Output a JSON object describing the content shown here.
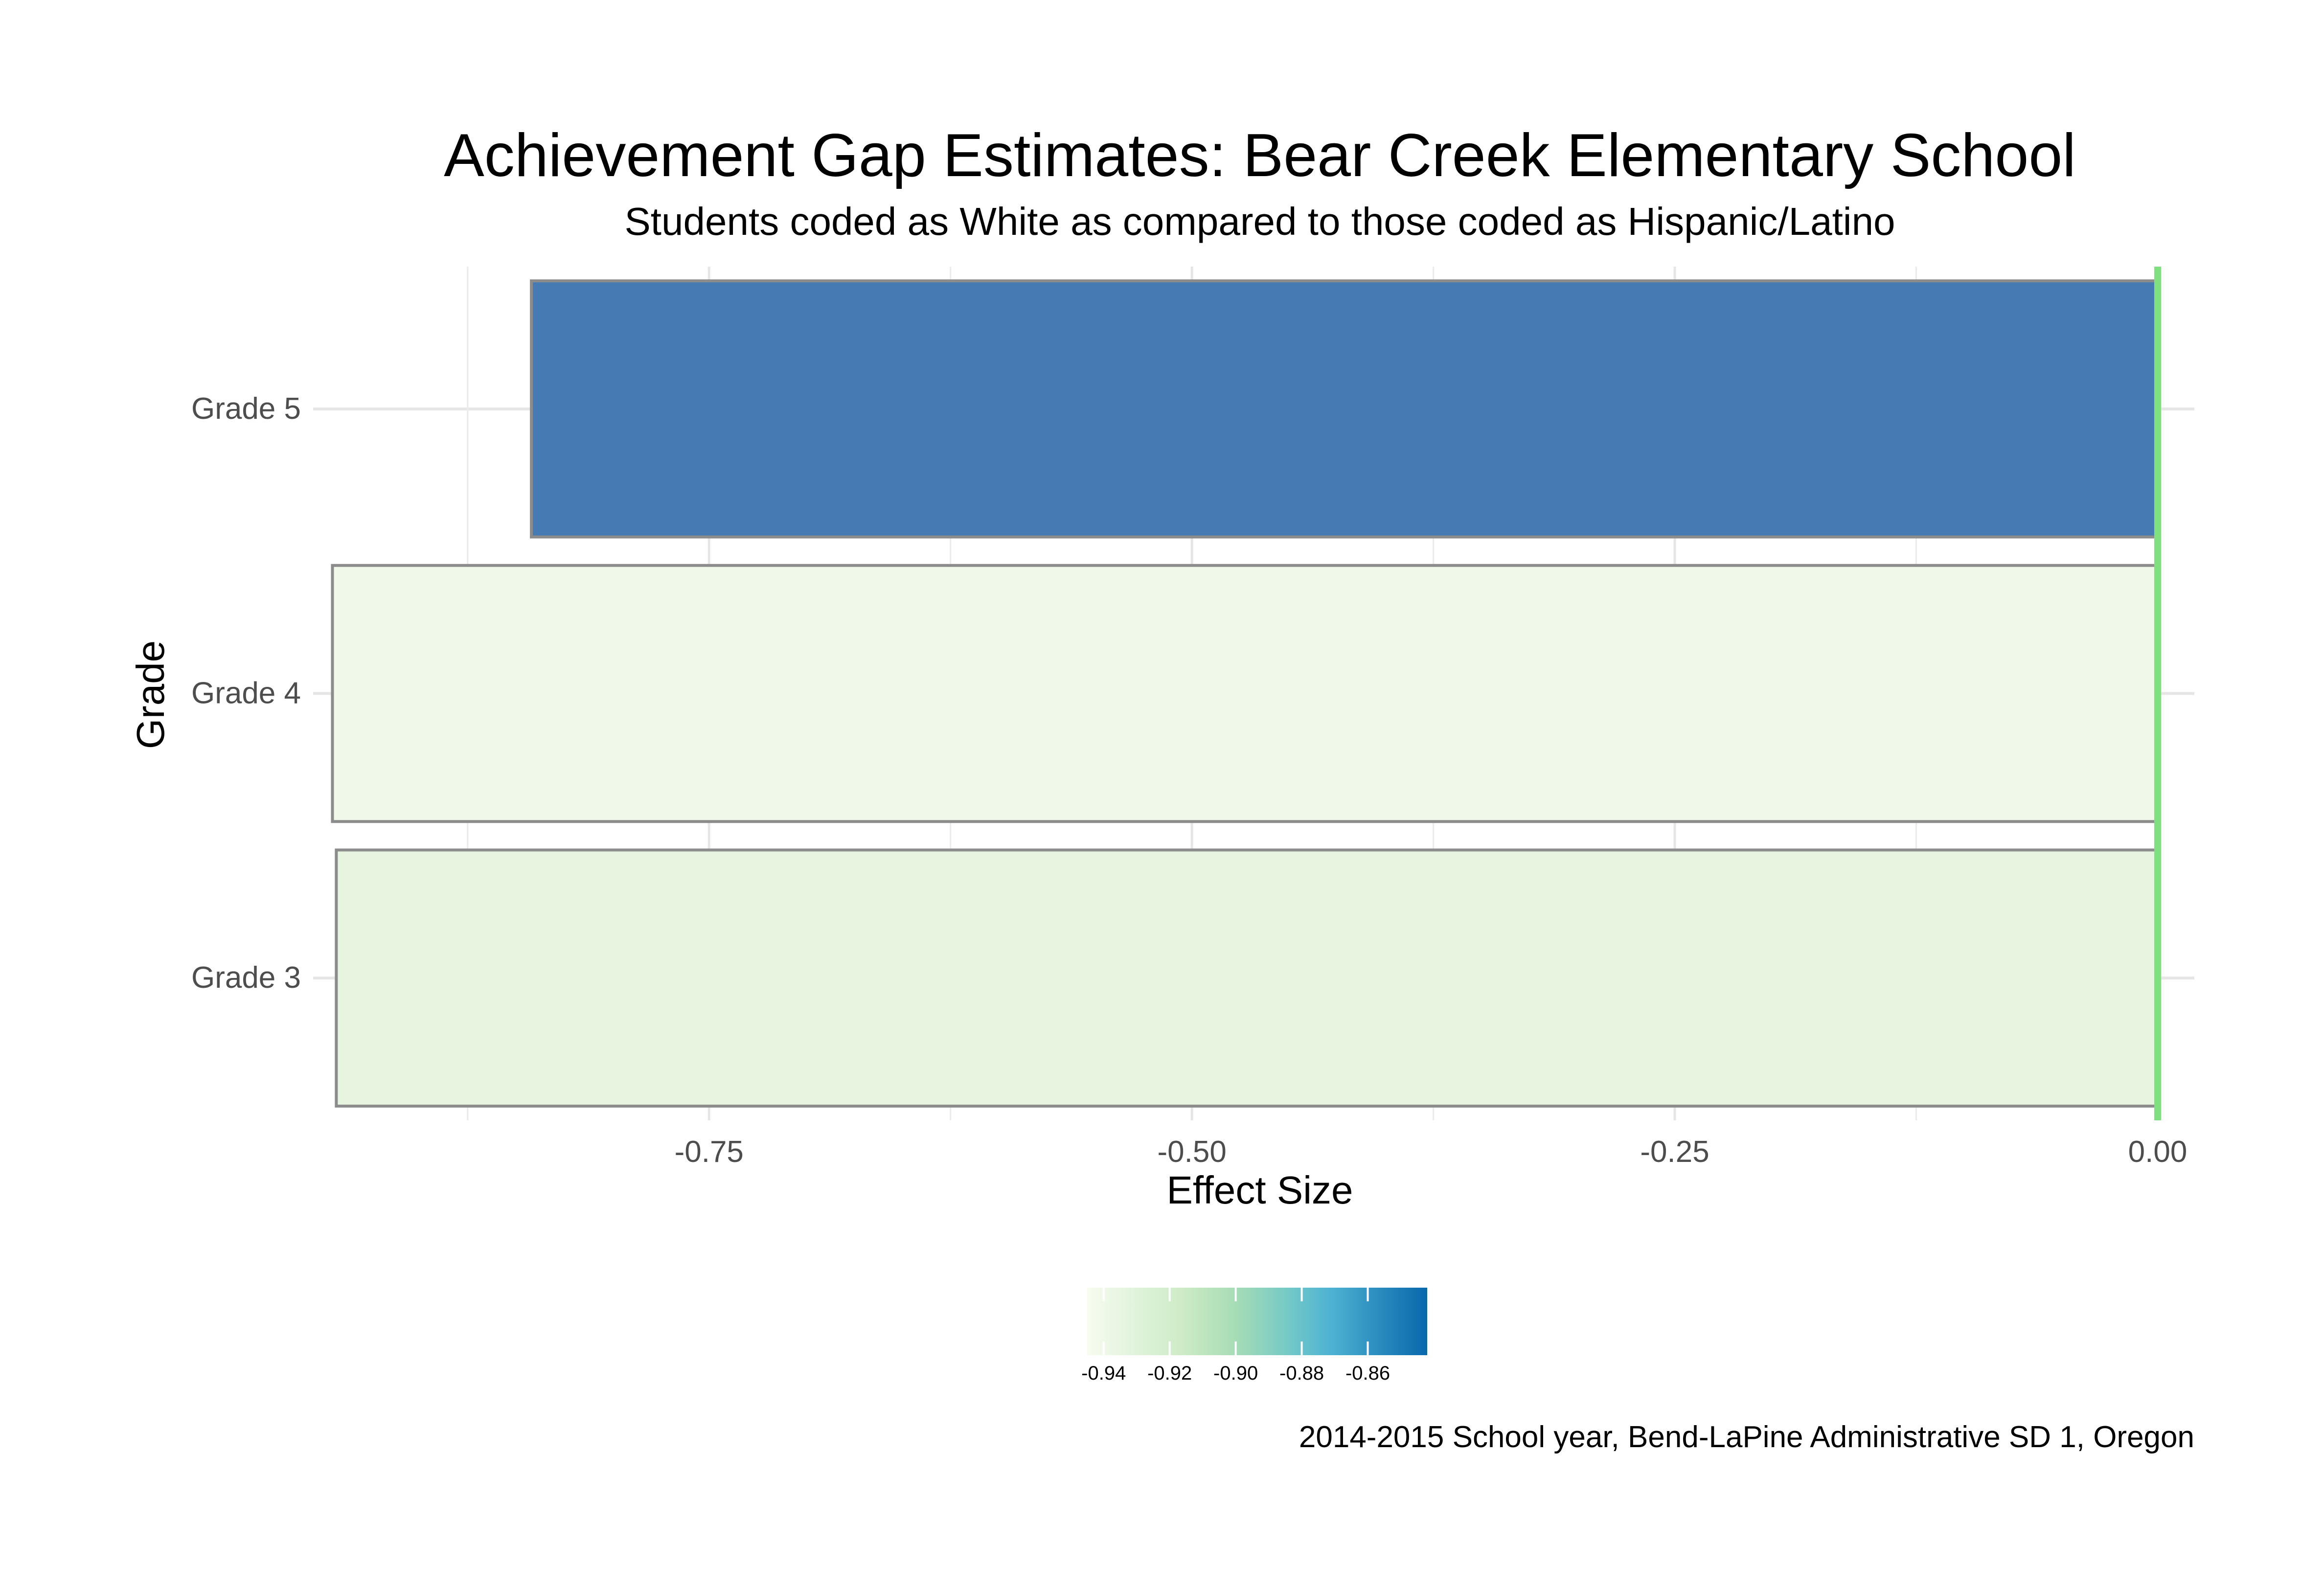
{
  "chart_data": {
    "type": "bar",
    "orientation": "horizontal",
    "title": "Achievement Gap Estimates: Bear Creek Elementary School",
    "subtitle": "Students coded as White as compared to those coded as Hispanic/Latino",
    "xlabel": "Effect Size",
    "ylabel": "Grade",
    "caption": "2014-2015 School year, Bend-LaPine Administrative SD 1, Oregon",
    "categories": [
      "Grade 3",
      "Grade 4",
      "Grade 5"
    ],
    "values": [
      -0.943,
      -0.945,
      -0.842
    ],
    "xlim": [
      -0.955,
      0.019
    ],
    "x_ticks": [
      -0.75,
      -0.5,
      -0.25,
      0.0
    ],
    "x_tick_labels": [
      "-0.75",
      "-0.50",
      "-0.25",
      "0.00"
    ],
    "reference_line": {
      "x": 0,
      "color": "#7FE07F"
    },
    "grid": true,
    "legend": {
      "type": "colorbar",
      "position": "bottom",
      "range": [
        -0.945,
        -0.842
      ],
      "ticks": [
        -0.94,
        -0.92,
        -0.9,
        -0.88,
        -0.86
      ],
      "tick_labels": [
        "-0.94",
        "-0.92",
        "-0.90",
        "-0.88",
        "-0.86"
      ],
      "colors": [
        "#F7FCF0",
        "#E0F3DB",
        "#CCEBC5",
        "#A8DDB5",
        "#7BCCC4",
        "#4EB3D3",
        "#2B8CBE",
        "#0868AC"
      ]
    },
    "bar_colors": [
      "#E6F5DF",
      "#EEF8E8",
      "#3F77B0"
    ],
    "bar_outline_color": "#8C8C8C"
  }
}
